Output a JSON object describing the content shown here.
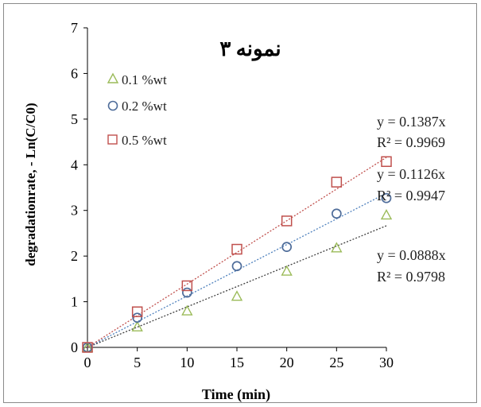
{
  "chart_data": {
    "type": "scatter",
    "title": "نمونه ۳",
    "xlabel": "Time (min)",
    "ylabel": "degradationrate, - Ln(C/C0)",
    "xlim": [
      0,
      30
    ],
    "ylim": [
      0,
      7
    ],
    "xticks": [
      "0",
      "5",
      "10",
      "15",
      "20",
      "25",
      "30"
    ],
    "yticks": [
      "0",
      "1",
      "2",
      "3",
      "4",
      "5",
      "6",
      "7"
    ],
    "grid": false,
    "legend_position": "top-left",
    "series": [
      {
        "name": "0.1 %wt",
        "marker": "triangle",
        "color": "#9bbb59",
        "x": [
          0,
          5,
          10,
          15,
          20,
          25,
          30
        ],
        "y": [
          0,
          0.45,
          0.8,
          1.12,
          1.67,
          2.18,
          2.9
        ],
        "trendline": {
          "slope": 0.0888,
          "equation": "y = 0.0888x",
          "r2": "R² = 0.9798",
          "line_color": "#404040"
        }
      },
      {
        "name": "0.2 %wt",
        "marker": "circle",
        "color": "#4f6d9a",
        "x": [
          0,
          5,
          10,
          15,
          20,
          25,
          30
        ],
        "y": [
          0,
          0.65,
          1.2,
          1.78,
          2.2,
          2.93,
          3.27
        ],
        "trendline": {
          "slope": 0.1126,
          "equation": "y = 0.1126x",
          "r2": "R² = 0.9947",
          "line_color": "#4f81bd"
        }
      },
      {
        "name": "0.5 %wt",
        "marker": "square",
        "color": "#c0504d",
        "x": [
          0,
          5,
          10,
          15,
          20,
          25,
          30
        ],
        "y": [
          0,
          0.78,
          1.35,
          2.15,
          2.77,
          3.62,
          4.07
        ],
        "trendline": {
          "slope": 0.1387,
          "equation": "y = 0.1387x",
          "r2": "R² = 0.9969",
          "line_color": "#c0504d"
        }
      }
    ]
  }
}
